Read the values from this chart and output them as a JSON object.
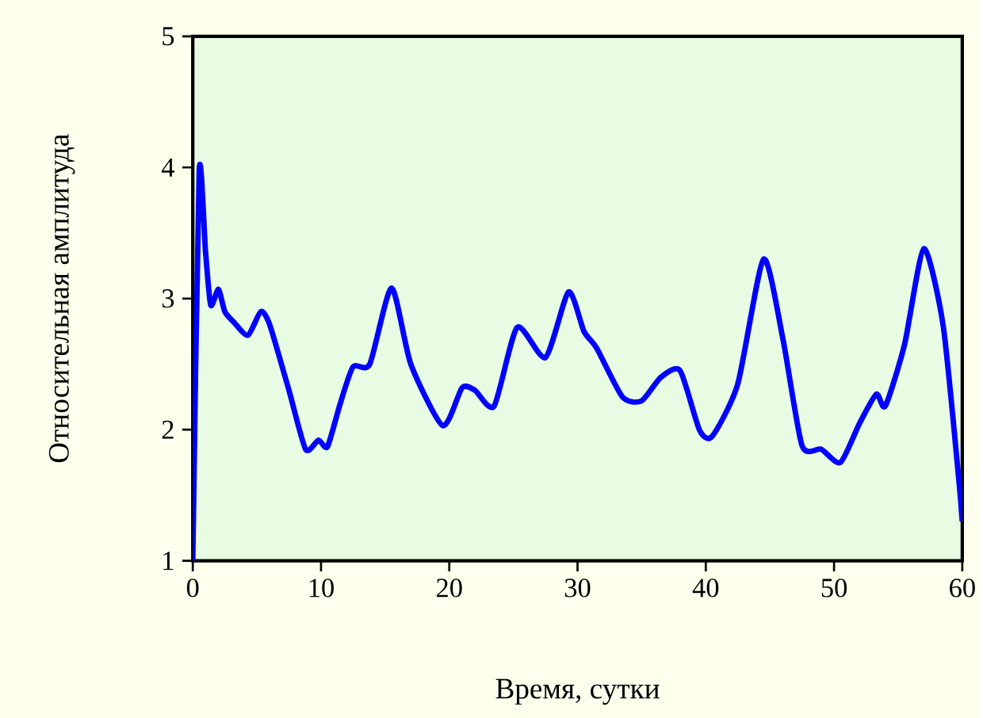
{
  "chart_data": {
    "type": "line",
    "xlabel": "Время, сутки",
    "ylabel": "Относительная амплитуда",
    "x": [
      0,
      0.5,
      1.0,
      1.4,
      2.0,
      2.5,
      3.2,
      4.3,
      5.3,
      6,
      7.5,
      8.8,
      9.8,
      10.5,
      11.5,
      12.5,
      13.8,
      15.5,
      17,
      19.5,
      21,
      22,
      23.5,
      25.3,
      27.5,
      29.3,
      30.5,
      31.5,
      33.5,
      35,
      36.5,
      38,
      39.5,
      40.5,
      42.5,
      44.5,
      46,
      47.5,
      49,
      50.5,
      52,
      53.3,
      54,
      55.5,
      57,
      58.5,
      59.7,
      60
    ],
    "series": [
      {
        "color": "#0000ff",
        "values": [
          1,
          3.97,
          3.35,
          2.95,
          3.07,
          2.9,
          2.82,
          2.72,
          2.9,
          2.8,
          2.3,
          1.85,
          1.92,
          1.87,
          2.2,
          2.48,
          2.5,
          3.08,
          2.5,
          2.03,
          2.32,
          2.3,
          2.18,
          2.78,
          2.55,
          3.05,
          2.75,
          2.62,
          2.25,
          2.22,
          2.4,
          2.45,
          2.0,
          1.95,
          2.35,
          3.3,
          2.7,
          1.88,
          1.85,
          1.75,
          2.05,
          2.27,
          2.18,
          2.65,
          3.38,
          2.8,
          1.65,
          1.3
        ]
      }
    ],
    "xlim": [
      0,
      60
    ],
    "ylim": [
      1,
      5
    ],
    "xticks": [
      0,
      10,
      20,
      30,
      40,
      50,
      60
    ],
    "yticks": [
      1,
      2,
      3,
      4,
      5
    ],
    "grid": false,
    "marker": "none",
    "line_style": "solid"
  }
}
